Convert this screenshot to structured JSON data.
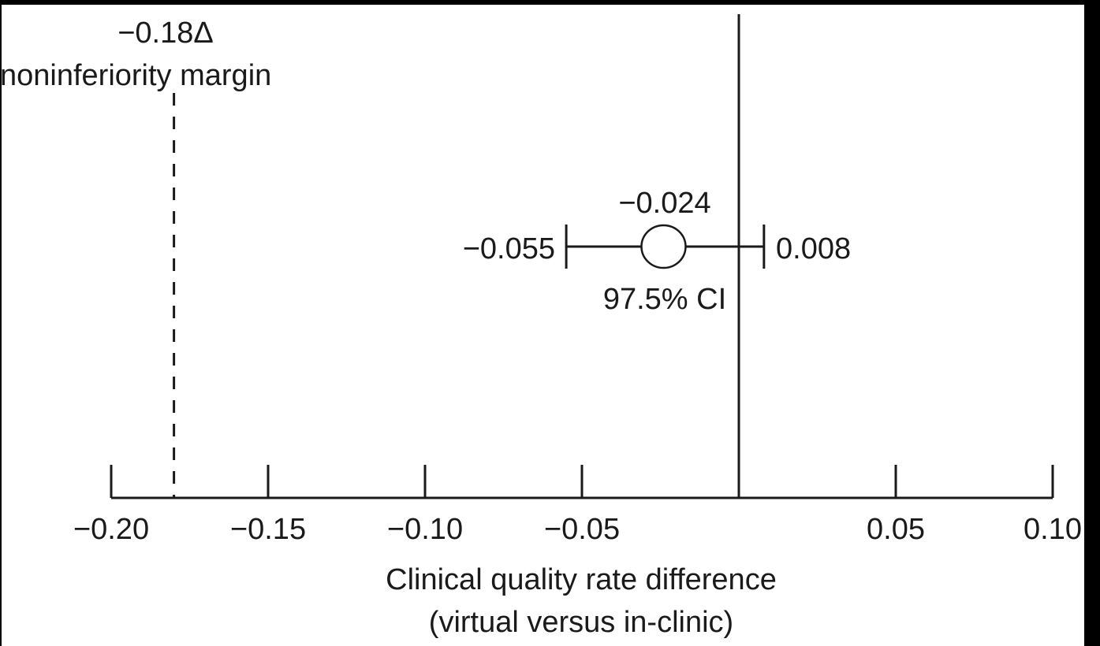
{
  "chart_data": {
    "type": "forest",
    "xlabel_lines": [
      "Clinical quality rate difference",
      "(virtual versus in-clinic)"
    ],
    "xlim": [
      -0.2,
      0.1
    ],
    "ticks": [
      {
        "value": -0.2,
        "label": "−0.20"
      },
      {
        "value": -0.15,
        "label": "−0.15"
      },
      {
        "value": -0.1,
        "label": "−0.10"
      },
      {
        "value": -0.05,
        "label": "−0.05"
      },
      {
        "value": 0.0,
        "label": ""
      },
      {
        "value": 0.05,
        "label": "0.05"
      },
      {
        "value": 0.1,
        "label": "0.10"
      }
    ],
    "zero_line": 0,
    "margin": {
      "value": -0.18,
      "label_value": "−0.18Δ",
      "label_text": "noninferiority margin"
    },
    "estimate": {
      "point": -0.024,
      "lower": -0.055,
      "upper": 0.008,
      "point_label": "−0.024",
      "lower_label": "−0.055",
      "upper_label": "0.008",
      "ci_label": "97.5% CI"
    },
    "colors": {
      "ink": "#1a1a1a",
      "background": "#ffffff"
    }
  }
}
